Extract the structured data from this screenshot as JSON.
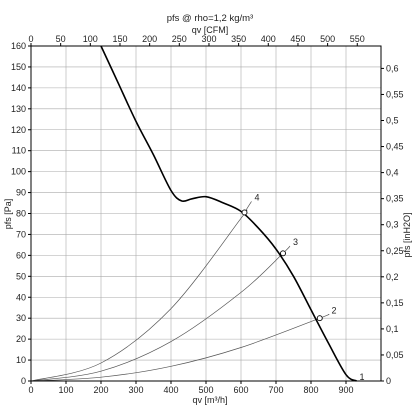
{
  "chart_data": {
    "type": "line",
    "title": "pfs @ rho=1,2 kg/m³",
    "xlabel_bottom": "qv [m³/h]",
    "xlabel_top": "qv [CFM]",
    "ylabel_left": "pfs [Pa]",
    "ylabel_right": "pfs [inH2O]",
    "xlim": [
      0,
      1000
    ],
    "ylim": [
      0,
      160
    ],
    "x_ticks_bottom": [
      "0",
      "100",
      "200",
      "300",
      "400",
      "500",
      "600",
      "700",
      "800",
      "900"
    ],
    "x_ticks_top": [
      "0",
      "50",
      "100",
      "150",
      "200",
      "250",
      "300",
      "350",
      "400",
      "450",
      "500",
      "550"
    ],
    "y_ticks_left": [
      "0",
      "10",
      "20",
      "30",
      "40",
      "50",
      "60",
      "70",
      "80",
      "90",
      "100",
      "110",
      "120",
      "130",
      "140",
      "150",
      "160"
    ],
    "y_ticks_right": [
      "0",
      "0,05",
      "0,1",
      "0,15",
      "0,2",
      "0,25",
      "0,3",
      "0,35",
      "0,4",
      "0,45",
      "0,5",
      "0,55",
      "0,6"
    ],
    "grid": true,
    "series": [
      {
        "x": [
          200,
          250,
          300,
          350,
          400,
          430,
          460,
          500,
          550,
          600,
          650,
          700,
          750,
          800,
          850,
          900,
          930
        ],
        "y": [
          160,
          142,
          124,
          108,
          91,
          86,
          87,
          88,
          85,
          81,
          73,
          63,
          50,
          34,
          18,
          3,
          0
        ]
      }
    ],
    "system_curves": [
      {
        "label": "1",
        "x": [
          930
        ],
        "y": [
          0
        ]
      },
      {
        "label": "2",
        "x": [
          0,
          200,
          400,
          600,
          825,
          850
        ],
        "y": [
          0,
          1.8,
          7,
          16,
          30,
          31.8
        ]
      },
      {
        "label": "3",
        "x": [
          0,
          200,
          400,
          600,
          720,
          740
        ],
        "y": [
          0,
          4.7,
          18.8,
          42.3,
          61,
          64.5
        ]
      },
      {
        "label": "4",
        "x": [
          0,
          200,
          400,
          600,
          610,
          630
        ],
        "y": [
          0,
          8.6,
          34.6,
          77.7,
          80.5,
          85.8
        ]
      }
    ],
    "operating_points": [
      {
        "label": "2",
        "x": 825,
        "y": 30
      },
      {
        "label": "3",
        "x": 720,
        "y": 61
      },
      {
        "label": "4",
        "x": 610,
        "y": 80.5
      }
    ],
    "colors": {
      "fan_curve": "#000000",
      "system_curves": "#555555",
      "grid": "#aaaaaa",
      "axes": "#000000"
    }
  }
}
